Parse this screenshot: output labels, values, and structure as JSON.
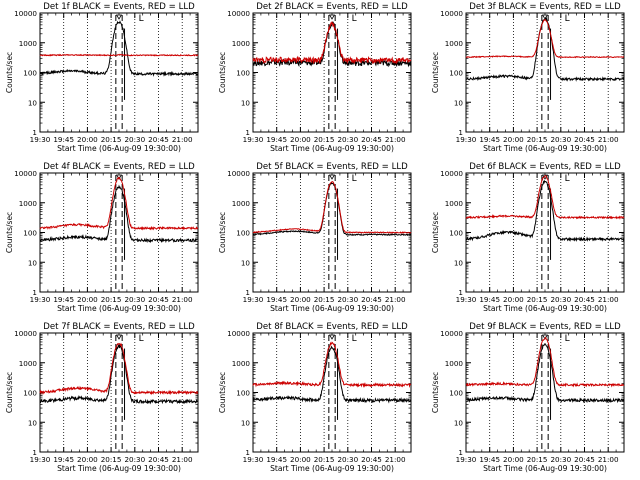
{
  "chart_data": [
    {
      "type": "line",
      "title": "Det 1f BLACK = Events, RED = LLD",
      "ylabel": "Counts/sec",
      "xlabel": "Start Time (06-Aug-09 19:30:00)",
      "x_ticks": [
        "19:30",
        "19:45",
        "20:00",
        "20:15",
        "20:30",
        "20:45",
        "21:00"
      ],
      "y_scale": "log",
      "ylim": [
        1,
        10000
      ],
      "y_ticks": [
        "1",
        "10",
        "100",
        "1000",
        "10000"
      ],
      "marker_label": "L",
      "x_range_min": [
        0,
        100
      ],
      "series": [
        {
          "color": "#000000",
          "base": 90,
          "bump": [
            20,
            14,
            1.25
          ],
          "peak": [
            50,
            3.2,
            5000
          ],
          "noise": 0.03
        },
        {
          "color": "#cc0000",
          "base": 380,
          "bump": [
            20,
            14,
            1.02
          ],
          "peak": [
            50,
            3.2,
            13
          ],
          "noise": 0.012
        }
      ]
    },
    {
      "type": "line",
      "title": "Det 2f BLACK = Events, RED = LLD",
      "ylabel": "Counts/sec",
      "xlabel": "Start Time (06-Aug-09 19:30:00)",
      "x_ticks": [
        "19:30",
        "19:45",
        "20:00",
        "20:15",
        "20:30",
        "20:45",
        "21:00"
      ],
      "y_scale": "log",
      "ylim": [
        1,
        10000
      ],
      "y_ticks": [
        "1",
        "10",
        "100",
        "1000",
        "10000"
      ],
      "marker_label": "L",
      "x_range_min": [
        0,
        100
      ],
      "series": [
        {
          "color": "#000000",
          "base": 210,
          "bump": [
            20,
            14,
            1.05
          ],
          "peak": [
            50,
            3.2,
            4200
          ],
          "noise": 0.07
        },
        {
          "color": "#cc0000",
          "base": 260,
          "bump": [
            20,
            14,
            1.05
          ],
          "peak": [
            50,
            3.2,
            4000
          ],
          "noise": 0.07
        }
      ]
    },
    {
      "type": "line",
      "title": "Det 3f BLACK = Events, RED = LLD",
      "ylabel": "Counts/sec",
      "xlabel": "Start Time (06-Aug-09 19:30:00)",
      "x_ticks": [
        "19:30",
        "19:45",
        "20:00",
        "20:15",
        "20:30",
        "20:45",
        "21:00"
      ],
      "y_scale": "log",
      "ylim": [
        1,
        10000
      ],
      "y_ticks": [
        "1",
        "10",
        "100",
        "1000",
        "10000"
      ],
      "marker_label": "L",
      "x_range_min": [
        0,
        100
      ],
      "series": [
        {
          "color": "#000000",
          "base": 60,
          "bump": [
            25,
            14,
            1.25
          ],
          "peak": [
            50,
            3.2,
            6500
          ],
          "noise": 0.03
        },
        {
          "color": "#cc0000",
          "base": 330,
          "bump": [
            25,
            14,
            1.06
          ],
          "peak": [
            50,
            3.2,
            5500
          ],
          "noise": 0.012
        }
      ]
    },
    {
      "type": "line",
      "title": "Det 4f BLACK = Events, RED = LLD",
      "ylabel": "Counts/sec",
      "xlabel": "Start Time (06-Aug-09 19:30:00)",
      "x_ticks": [
        "19:30",
        "19:45",
        "20:00",
        "20:15",
        "20:30",
        "20:45",
        "21:00"
      ],
      "y_scale": "log",
      "ylim": [
        1,
        10000
      ],
      "y_ticks": [
        "1",
        "10",
        "100",
        "1000",
        "10000"
      ],
      "marker_label": "L",
      "x_range_min": [
        0,
        100
      ],
      "series": [
        {
          "color": "#000000",
          "base": 55,
          "bump": [
            24,
            14,
            1.3
          ],
          "peak": [
            50,
            3.2,
            3500
          ],
          "noise": 0.035
        },
        {
          "color": "#cc0000",
          "base": 140,
          "bump": [
            24,
            14,
            1.3
          ],
          "peak": [
            50,
            3.2,
            6500
          ],
          "noise": 0.025
        }
      ]
    },
    {
      "type": "line",
      "title": "Det 5f BLACK = Events, RED = LLD",
      "ylabel": "Counts/sec",
      "xlabel": "Start Time (06-Aug-09 19:30:00)",
      "x_ticks": [
        "19:30",
        "19:45",
        "20:00",
        "20:15",
        "20:30",
        "20:45",
        "21:00"
      ],
      "y_scale": "log",
      "ylim": [
        1,
        10000
      ],
      "y_ticks": [
        "1",
        "10",
        "100",
        "1000",
        "10000"
      ],
      "marker_label": "L",
      "x_range_min": [
        0,
        100
      ],
      "series": [
        {
          "color": "#000000",
          "base": 85,
          "bump": [
            26,
            16,
            1.3
          ],
          "peak": [
            50,
            3.2,
            4500
          ],
          "noise": 0.015
        },
        {
          "color": "#cc0000",
          "base": 100,
          "bump": [
            26,
            16,
            1.3
          ],
          "peak": [
            50,
            3.2,
            5000
          ],
          "noise": 0.012
        }
      ]
    },
    {
      "type": "line",
      "title": "Det 6f BLACK = Events, RED = LLD",
      "ylabel": "Counts/sec",
      "xlabel": "Start Time (06-Aug-09 19:30:00)",
      "x_ticks": [
        "19:30",
        "19:45",
        "20:00",
        "20:15",
        "20:30",
        "20:45",
        "21:00"
      ],
      "y_scale": "log",
      "ylim": [
        1,
        10000
      ],
      "y_ticks": [
        "1",
        "10",
        "100",
        "1000",
        "10000"
      ],
      "marker_label": "L",
      "x_range_min": [
        0,
        100
      ],
      "series": [
        {
          "color": "#000000",
          "base": 60,
          "bump": [
            26,
            14,
            1.7
          ],
          "peak": [
            50,
            3.2,
            5000
          ],
          "noise": 0.03
        },
        {
          "color": "#cc0000",
          "base": 320,
          "bump": [
            26,
            14,
            1.12
          ],
          "peak": [
            50,
            3.2,
            7500
          ],
          "noise": 0.02
        }
      ]
    },
    {
      "type": "line",
      "title": "Det 7f BLACK = Events, RED = LLD",
      "ylabel": "Counts/sec",
      "xlabel": "Start Time (06-Aug-09 19:30:00)",
      "x_ticks": [
        "19:30",
        "19:45",
        "20:00",
        "20:15",
        "20:30",
        "20:45",
        "21:00"
      ],
      "y_scale": "log",
      "ylim": [
        1,
        10000
      ],
      "y_ticks": [
        "1",
        "10",
        "100",
        "1000",
        "10000"
      ],
      "marker_label": "L",
      "x_range_min": [
        0,
        100
      ],
      "series": [
        {
          "color": "#000000",
          "base": 50,
          "bump": [
            24,
            14,
            1.3
          ],
          "peak": [
            50,
            3.2,
            3500
          ],
          "noise": 0.04
        },
        {
          "color": "#cc0000",
          "base": 100,
          "bump": [
            24,
            14,
            1.4
          ],
          "peak": [
            50,
            3.2,
            4500
          ],
          "noise": 0.03
        }
      ]
    },
    {
      "type": "line",
      "title": "Det 8f BLACK = Events, RED = LLD",
      "ylabel": "Counts/sec",
      "xlabel": "Start Time (06-Aug-09 19:30:00)",
      "x_ticks": [
        "19:30",
        "19:45",
        "20:00",
        "20:15",
        "20:30",
        "20:45",
        "21:00"
      ],
      "y_scale": "log",
      "ylim": [
        1,
        10000
      ],
      "y_ticks": [
        "1",
        "10",
        "100",
        "1000",
        "10000"
      ],
      "marker_label": "L",
      "x_range_min": [
        0,
        100
      ],
      "series": [
        {
          "color": "#000000",
          "base": 55,
          "bump": [
            20,
            14,
            1.2
          ],
          "peak": [
            50,
            3.2,
            3200
          ],
          "noise": 0.04
        },
        {
          "color": "#cc0000",
          "base": 180,
          "bump": [
            20,
            14,
            1.15
          ],
          "peak": [
            50,
            3.2,
            4500
          ],
          "noise": 0.03
        }
      ]
    },
    {
      "type": "line",
      "title": "Det 9f BLACK = Events, RED = LLD",
      "ylabel": "Counts/sec",
      "xlabel": "Start Time (06-Aug-09 19:30:00)",
      "x_ticks": [
        "19:30",
        "19:45",
        "20:00",
        "20:15",
        "20:30",
        "20:45",
        "21:00"
      ],
      "y_scale": "log",
      "ylim": [
        1,
        10000
      ],
      "y_ticks": [
        "1",
        "10",
        "100",
        "1000",
        "10000"
      ],
      "marker_label": "L",
      "x_range_min": [
        0,
        100
      ],
      "series": [
        {
          "color": "#000000",
          "base": 55,
          "bump": [
            20,
            14,
            1.2
          ],
          "peak": [
            50,
            3.2,
            4000
          ],
          "noise": 0.035
        },
        {
          "color": "#cc0000",
          "base": 180,
          "bump": [
            20,
            14,
            1.1
          ],
          "peak": [
            50,
            3.2,
            6500
          ],
          "noise": 0.025
        }
      ]
    }
  ]
}
